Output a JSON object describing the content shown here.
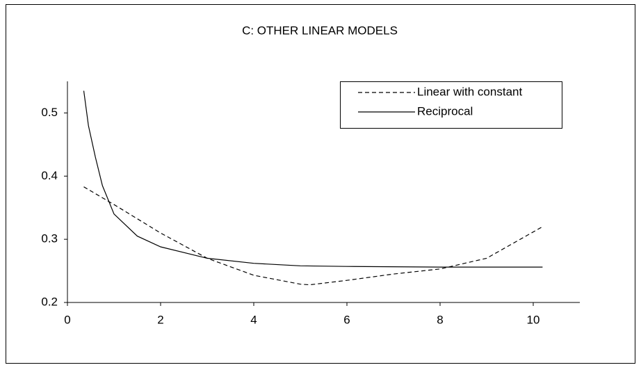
{
  "chart_data": {
    "type": "line",
    "title": "C: OTHER LINEAR MODELS",
    "xlim": [
      0,
      11
    ],
    "xticks": [
      0,
      2,
      4,
      6,
      8,
      10
    ],
    "ylim": [
      0.2,
      0.55
    ],
    "yticks": [
      0.2,
      0.3,
      0.4,
      0.5
    ],
    "legend": "upper-right",
    "series": [
      {
        "name": "Linear with constant",
        "color": "#000000",
        "dash": true,
        "x": [
          0.35,
          1,
          2,
          3,
          4,
          5,
          5.2,
          6,
          7,
          8,
          9,
          10.2
        ],
        "values": [
          0.383,
          0.355,
          0.31,
          0.27,
          0.243,
          0.229,
          0.228,
          0.235,
          0.245,
          0.253,
          0.27,
          0.32
        ]
      },
      {
        "name": "Reciprocal",
        "color": "#000000",
        "dash": false,
        "x": [
          0.35,
          0.45,
          0.6,
          0.75,
          1,
          1.5,
          2,
          3,
          4,
          5,
          6,
          8,
          10.2
        ],
        "values": [
          0.535,
          0.48,
          0.43,
          0.385,
          0.34,
          0.305,
          0.288,
          0.27,
          0.262,
          0.258,
          0.257,
          0.256,
          0.256
        ]
      }
    ]
  }
}
